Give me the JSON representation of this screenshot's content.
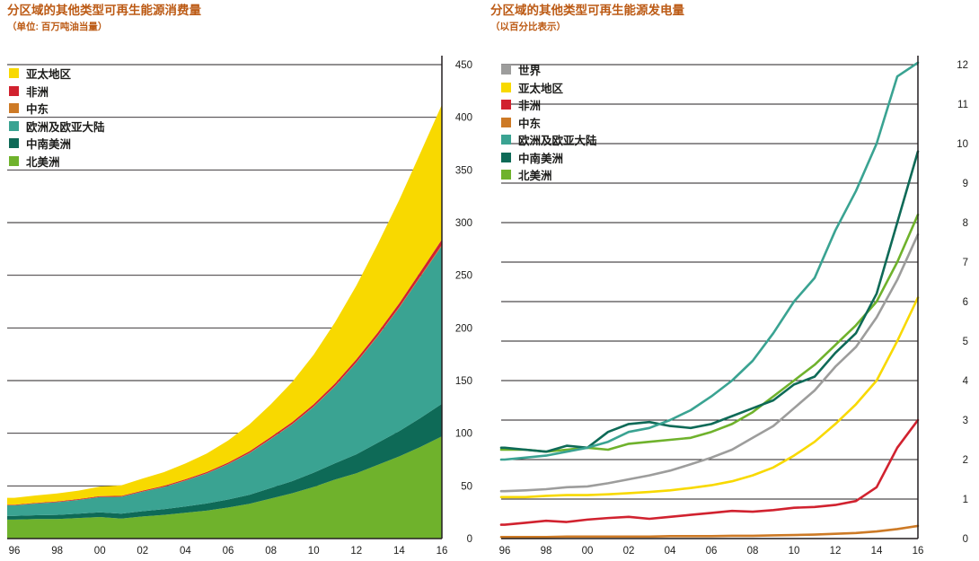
{
  "page": {
    "background": "#ffffff",
    "text_color": "#1d1d1b"
  },
  "chart_data": [
    {
      "type": "area",
      "stacked": true,
      "title": "分区域的其他类型可再生能源消费量",
      "subtitle": "（单位: 百万吨油当量）",
      "title_color": "#bc5a14",
      "x": [
        1996,
        1997,
        1998,
        1999,
        2000,
        2001,
        2002,
        2003,
        2004,
        2005,
        2006,
        2007,
        2008,
        2009,
        2010,
        2011,
        2012,
        2013,
        2014,
        2015,
        2016
      ],
      "x_tick_labels": [
        "96",
        "98",
        "00",
        "02",
        "04",
        "06",
        "08",
        "10",
        "12",
        "14",
        "16"
      ],
      "x_tick_indices": [
        0,
        2,
        4,
        6,
        8,
        10,
        12,
        14,
        16,
        18,
        20
      ],
      "ylim": [
        0,
        450
      ],
      "ytick_step": 50,
      "grid": true,
      "legend_position": "top-left",
      "legend": [
        {
          "label": "亚太地区",
          "color": "#f8d900"
        },
        {
          "label": "非洲",
          "color": "#d1222f"
        },
        {
          "label": "中东",
          "color": "#cd7a26"
        },
        {
          "label": "欧洲及欧亚大陆",
          "color": "#3aa392"
        },
        {
          "label": "中南美洲",
          "color": "#0e6a57"
        },
        {
          "label": "北美洲",
          "color": "#6fb22c"
        }
      ],
      "series": [
        {
          "id": "north-america",
          "name": "北美洲",
          "color": "#6fb22c",
          "values": [
            18,
            18.5,
            18.5,
            19.5,
            20.5,
            19,
            21,
            22.5,
            24.5,
            26.5,
            29.5,
            33,
            38,
            43,
            49,
            56,
            62,
            70,
            78,
            87,
            97
          ]
        },
        {
          "id": "south-central-america",
          "name": "中南美洲",
          "color": "#0e6a57",
          "values": [
            3.5,
            3.7,
            4,
            4.2,
            4.4,
            4.6,
            5,
            5.4,
            6,
            6.8,
            7.6,
            8.6,
            10,
            11.5,
            13.5,
            15.5,
            18,
            21,
            24,
            27.5,
            31
          ]
        },
        {
          "id": "europe-eurasia",
          "name": "欧洲及欧亚大陆",
          "color": "#3aa392",
          "values": [
            10,
            11,
            12,
            13,
            14.5,
            16,
            18.5,
            21,
            24.5,
            28.5,
            33.5,
            39.5,
            46.5,
            54,
            62.5,
            73,
            87,
            101,
            117,
            134,
            150
          ]
        },
        {
          "id": "middle-east",
          "name": "中东",
          "color": "#cd7a26",
          "values": [
            0.1,
            0.1,
            0.1,
            0.1,
            0.1,
            0.1,
            0.1,
            0.2,
            0.2,
            0.2,
            0.2,
            0.3,
            0.3,
            0.3,
            0.4,
            0.4,
            0.5,
            0.6,
            0.7,
            0.8,
            1
          ]
        },
        {
          "id": "africa",
          "name": "非洲",
          "color": "#d1222f",
          "values": [
            0.6,
            0.6,
            0.7,
            0.7,
            0.8,
            0.8,
            0.9,
            1,
            1.1,
            1.2,
            1.3,
            1.5,
            1.7,
            1.9,
            2.1,
            2.4,
            2.7,
            3.1,
            3.6,
            4.2,
            5
          ]
        },
        {
          "id": "asia-pacific",
          "name": "亚太地区",
          "color": "#f8d900",
          "values": [
            6.5,
            7,
            7.5,
            8,
            9,
            10,
            11.5,
            13,
            15,
            17.5,
            21,
            25.5,
            31,
            38,
            47,
            58,
            70,
            84,
            98,
            113,
            128
          ]
        }
      ]
    },
    {
      "type": "line",
      "stacked": false,
      "title": "分区域的其他类型可再生能源发电量",
      "subtitle": "（以百分比表示）",
      "title_color": "#bc5a14",
      "x": [
        1996,
        1997,
        1998,
        1999,
        2000,
        2001,
        2002,
        2003,
        2004,
        2005,
        2006,
        2007,
        2008,
        2009,
        2010,
        2011,
        2012,
        2013,
        2014,
        2015,
        2016
      ],
      "x_tick_labels": [
        "96",
        "98",
        "00",
        "02",
        "04",
        "06",
        "08",
        "10",
        "12",
        "14",
        "16"
      ],
      "x_tick_indices": [
        0,
        2,
        4,
        6,
        8,
        10,
        12,
        14,
        16,
        18,
        20
      ],
      "ylim": [
        0,
        12
      ],
      "ytick_step": 1,
      "grid": true,
      "legend_position": "top-left",
      "legend": [
        {
          "label": "世界",
          "color": "#9d9d9c"
        },
        {
          "label": "亚太地区",
          "color": "#f8d900"
        },
        {
          "label": "非洲",
          "color": "#d1222f"
        },
        {
          "label": "中东",
          "color": "#cd7a26"
        },
        {
          "label": "欧洲及欧亚大陆",
          "color": "#3aa392"
        },
        {
          "label": "中南美洲",
          "color": "#0e6a57"
        },
        {
          "label": "北美洲",
          "color": "#6fb22c"
        }
      ],
      "series": [
        {
          "id": "world",
          "name": "世界",
          "color": "#9d9d9c",
          "values": [
            1.2,
            1.22,
            1.25,
            1.3,
            1.32,
            1.4,
            1.5,
            1.6,
            1.72,
            1.88,
            2.05,
            2.25,
            2.55,
            2.85,
            3.3,
            3.75,
            4.35,
            4.85,
            5.6,
            6.55,
            7.7
          ]
        },
        {
          "id": "asia-pacific",
          "name": "亚太地区",
          "color": "#f8d900",
          "values": [
            1.05,
            1.05,
            1.08,
            1.1,
            1.1,
            1.12,
            1.15,
            1.18,
            1.22,
            1.28,
            1.35,
            1.45,
            1.6,
            1.8,
            2.1,
            2.45,
            2.9,
            3.4,
            4,
            5,
            6.1
          ]
        },
        {
          "id": "africa",
          "name": "非洲",
          "color": "#d1222f",
          "values": [
            0.35,
            0.4,
            0.45,
            0.42,
            0.48,
            0.52,
            0.55,
            0.5,
            0.55,
            0.6,
            0.65,
            0.7,
            0.68,
            0.72,
            0.78,
            0.8,
            0.85,
            0.95,
            1.3,
            2.3,
            3
          ]
        },
        {
          "id": "middle-east",
          "name": "中东",
          "color": "#cd7a26",
          "values": [
            0.04,
            0.04,
            0.04,
            0.05,
            0.05,
            0.05,
            0.05,
            0.05,
            0.06,
            0.06,
            0.06,
            0.07,
            0.07,
            0.08,
            0.09,
            0.1,
            0.12,
            0.14,
            0.18,
            0.24,
            0.32
          ]
        },
        {
          "id": "north-america",
          "name": "北美洲",
          "color": "#6fb22c",
          "values": [
            2.25,
            2.25,
            2.2,
            2.25,
            2.3,
            2.25,
            2.4,
            2.45,
            2.5,
            2.55,
            2.7,
            2.9,
            3.2,
            3.6,
            4,
            4.4,
            4.9,
            5.4,
            6,
            7,
            8.2
          ]
        },
        {
          "id": "south-central-america",
          "name": "中南美洲",
          "color": "#0e6a57",
          "values": [
            2.3,
            2.25,
            2.2,
            2.35,
            2.3,
            2.7,
            2.9,
            2.95,
            2.85,
            2.8,
            2.9,
            3.1,
            3.3,
            3.5,
            3.9,
            4.1,
            4.7,
            5.2,
            6.2,
            8,
            9.8
          ]
        },
        {
          "id": "europe-eurasia",
          "name": "欧洲及欧亚大陆",
          "color": "#3aa392",
          "values": [
            2,
            2.05,
            2.1,
            2.2,
            2.3,
            2.45,
            2.7,
            2.8,
            3,
            3.25,
            3.6,
            4,
            4.5,
            5.2,
            6,
            6.6,
            7.8,
            8.8,
            10,
            11.7,
            12.05
          ]
        }
      ]
    }
  ]
}
